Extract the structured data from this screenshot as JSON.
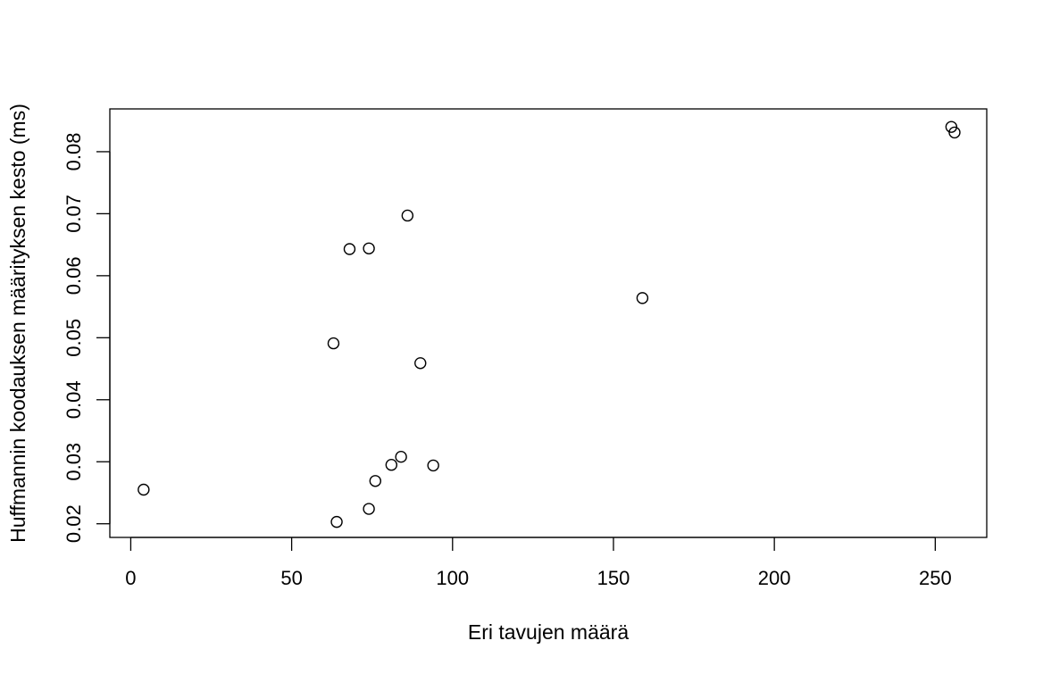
{
  "chart_data": {
    "type": "scatter",
    "title": "",
    "xlabel": "Eri tavujen määrä",
    "ylabel": "Huffmannin koodauksen määrityksen kesto (ms)",
    "xlim": [
      -6.5,
      266
    ],
    "ylim": [
      0.0178,
      0.0869
    ],
    "x_ticks": [
      0,
      50,
      100,
      150,
      200,
      250
    ],
    "x_tick_labels": [
      "0",
      "50",
      "100",
      "150",
      "200",
      "250"
    ],
    "y_ticks": [
      0.02,
      0.03,
      0.04,
      0.05,
      0.06,
      0.07,
      0.08
    ],
    "y_tick_labels": [
      "0.02",
      "0.03",
      "0.04",
      "0.05",
      "0.06",
      "0.07",
      "0.08"
    ],
    "grid": false,
    "marker": "open-circle",
    "points": [
      {
        "x": 4,
        "y": 0.0255
      },
      {
        "x": 63,
        "y": 0.0491
      },
      {
        "x": 64,
        "y": 0.0203
      },
      {
        "x": 68,
        "y": 0.0643
      },
      {
        "x": 74,
        "y": 0.0644
      },
      {
        "x": 74,
        "y": 0.0224
      },
      {
        "x": 76,
        "y": 0.0269
      },
      {
        "x": 81,
        "y": 0.0295
      },
      {
        "x": 84,
        "y": 0.0308
      },
      {
        "x": 86,
        "y": 0.0697
      },
      {
        "x": 90,
        "y": 0.0459
      },
      {
        "x": 94,
        "y": 0.0294
      },
      {
        "x": 159,
        "y": 0.0564
      },
      {
        "x": 255,
        "y": 0.084
      },
      {
        "x": 256,
        "y": 0.0831
      }
    ]
  }
}
